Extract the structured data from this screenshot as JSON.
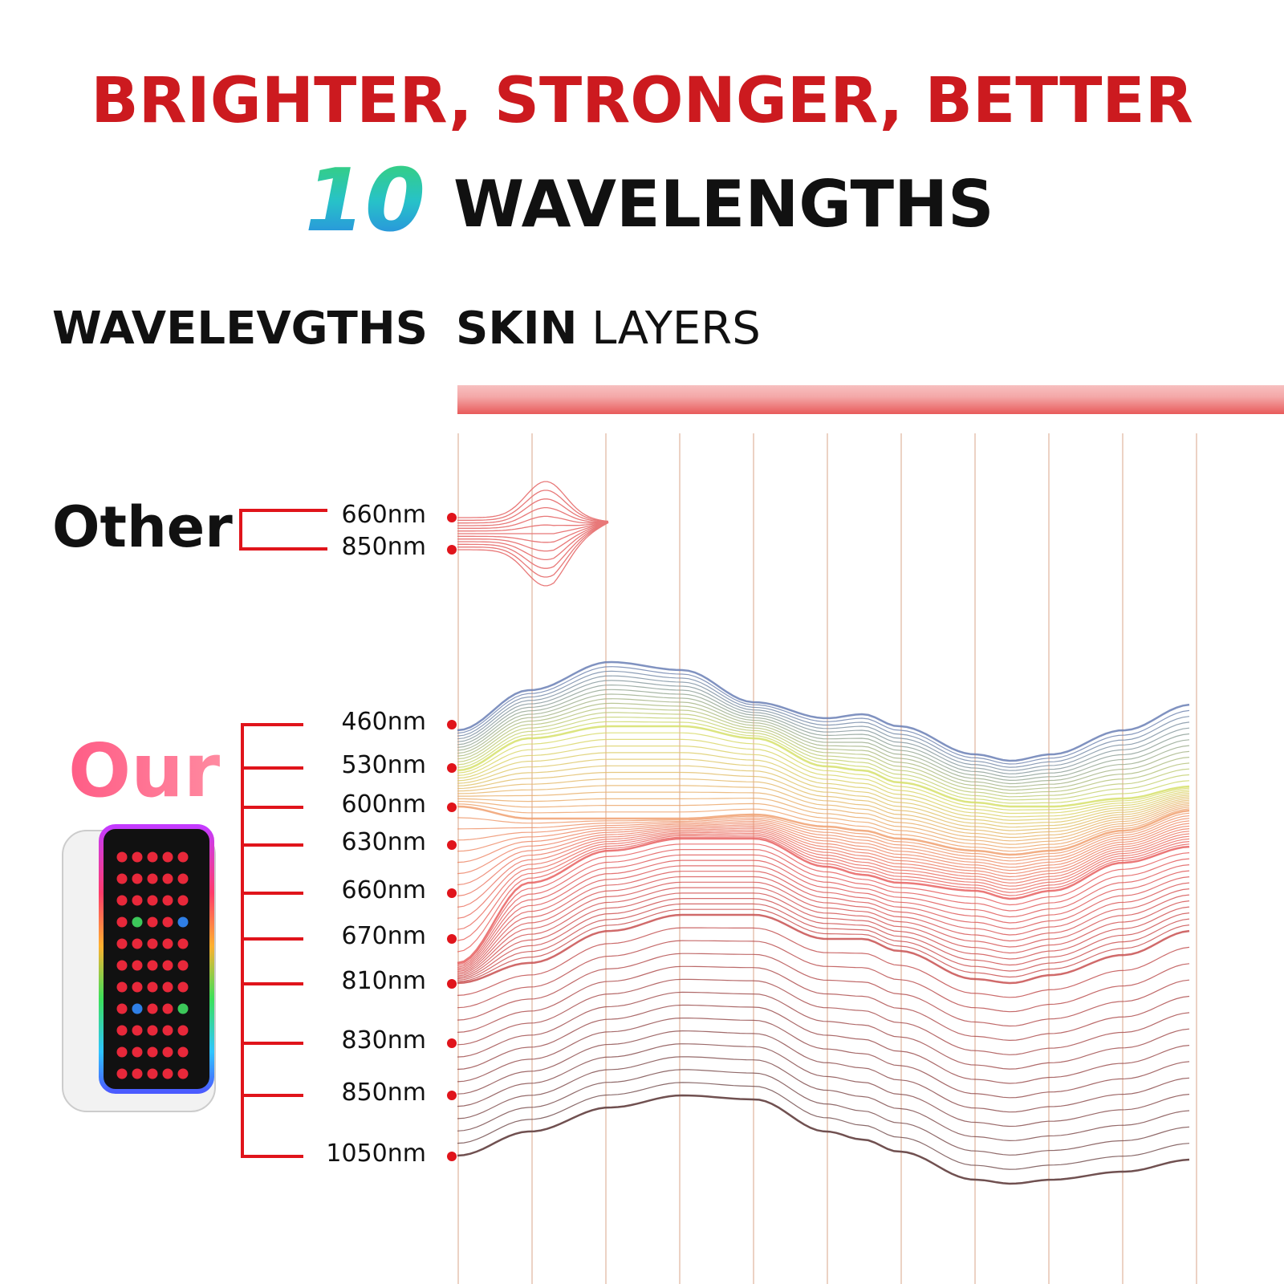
{
  "header": {
    "title": "BRIGHTER, STRONGER, BETTER",
    "count": "10",
    "subtitle": "WAVELENGTHS"
  },
  "columns": {
    "left": "WAVELEVGTHS",
    "right_bold": "SKIN",
    "right": "LAYERS"
  },
  "other": {
    "label": "Other",
    "wavelengths": [
      "660nm",
      "850nm"
    ]
  },
  "our": {
    "label": "Our",
    "wavelengths": [
      "460nm",
      "530nm",
      "600nm",
      "630nm",
      "660nm",
      "670nm",
      "810nm",
      "830nm",
      "850nm",
      "1050nm"
    ]
  }
}
